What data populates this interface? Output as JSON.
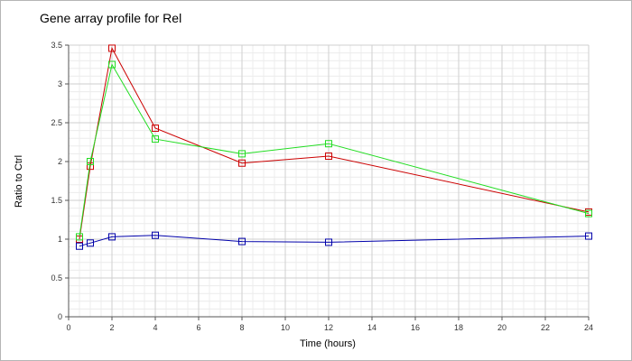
{
  "chart_data": {
    "type": "line",
    "title": "Gene array profile for Rel",
    "xlabel": "Time (hours)",
    "ylabel": "Ratio to Ctrl",
    "xlim": [
      0,
      24
    ],
    "ylim": [
      0,
      3.5
    ],
    "xticks": [
      "0",
      "2",
      "4",
      "6",
      "8",
      "10",
      "12",
      "14",
      "16",
      "18",
      "20",
      "22",
      "24"
    ],
    "yticks": [
      "0",
      "0.5",
      "1",
      "1.5",
      "2",
      "2.5",
      "3",
      "3.5"
    ],
    "grid": true,
    "legend": "none",
    "marker": "square",
    "x": [
      0.5,
      1,
      2,
      4,
      8,
      12,
      24
    ],
    "series": [
      {
        "color": "#cc0000",
        "values": [
          1.0,
          1.94,
          3.46,
          2.43,
          1.98,
          2.07,
          1.35
        ]
      },
      {
        "color": "#22dd22",
        "values": [
          1.03,
          2.0,
          3.25,
          2.29,
          2.1,
          2.23,
          1.33
        ]
      },
      {
        "color": "#0000aa",
        "values": [
          0.91,
          0.95,
          1.03,
          1.05,
          0.97,
          0.96,
          1.04
        ]
      }
    ]
  }
}
